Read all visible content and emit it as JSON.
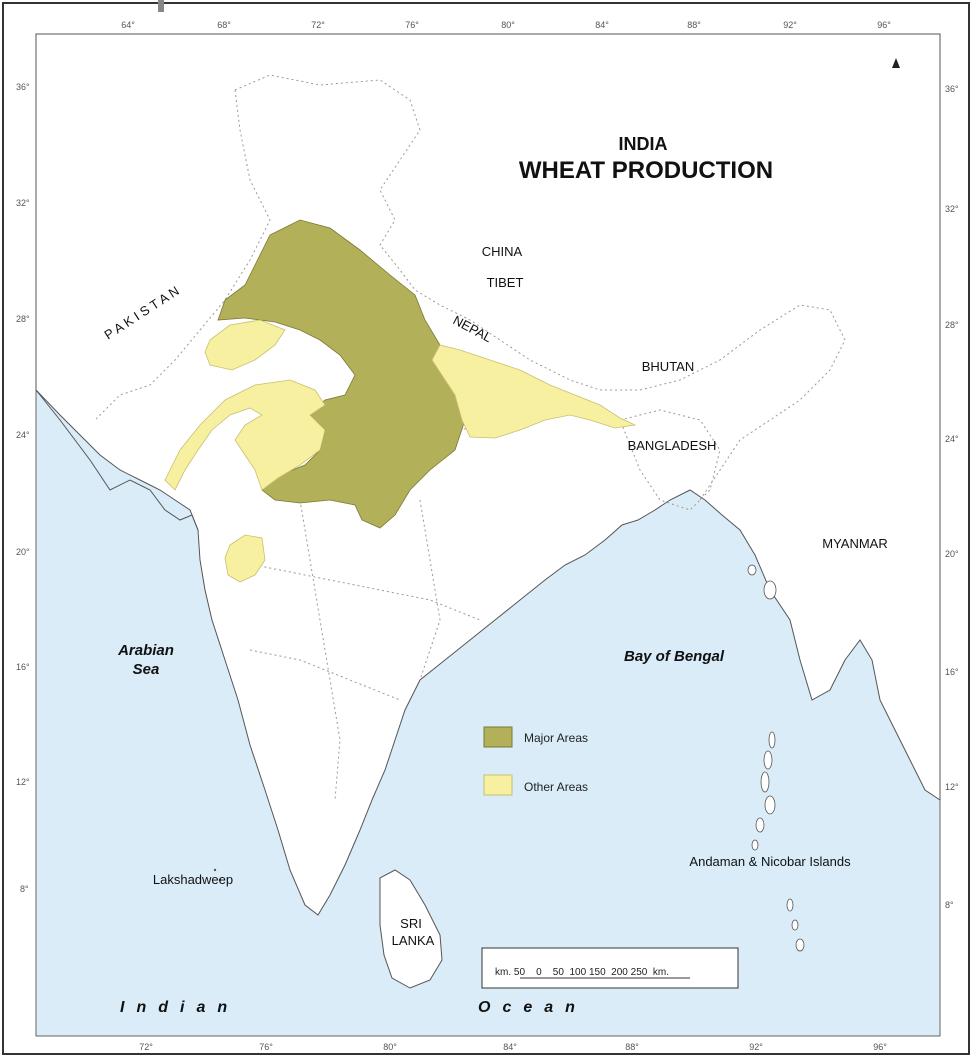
{
  "map": {
    "title_line1": "INDIA",
    "title_line2": "WHEAT PRODUCTION",
    "colors": {
      "sea": "#d9ecf8",
      "land": "#ffffff",
      "major": "#b3b05a",
      "other": "#f7f0a0",
      "coast": "#555555"
    },
    "longitude_labels": [
      "64°",
      "68°",
      "72°",
      "76°",
      "80°",
      "84°",
      "88°",
      "92°",
      "96°"
    ],
    "longitude_labels_bottom": [
      "72°",
      "76°",
      "80°",
      "84°",
      "88°",
      "92°",
      "96°"
    ],
    "latitude_labels": [
      "36°",
      "32°",
      "28°",
      "24°",
      "20°",
      "16°",
      "12°",
      "8°"
    ],
    "labels": {
      "pakistan": "P A K I S T A N",
      "china": "CHINA",
      "tibet": "TIBET",
      "nepal": "NEPAL",
      "bhutan": "BHUTAN",
      "bangladesh": "BANGLADESH",
      "myanmar": "MYANMAR",
      "arabian_sea_1": "Arabian",
      "arabian_sea_2": "Sea",
      "bay_of_bengal": "Bay of Bengal",
      "lakshadweep": "Lakshadweep",
      "andaman": "Andaman & Nicobar Islands",
      "sri_lanka_1": "SRI",
      "sri_lanka_2": "LANKA",
      "indian": "Indian",
      "ocean": "Ocean"
    },
    "legend": {
      "major": "Major Areas",
      "other": "Other Areas"
    },
    "scale": {
      "text": "km. 50    0    50  100 150  200 250  km."
    }
  }
}
